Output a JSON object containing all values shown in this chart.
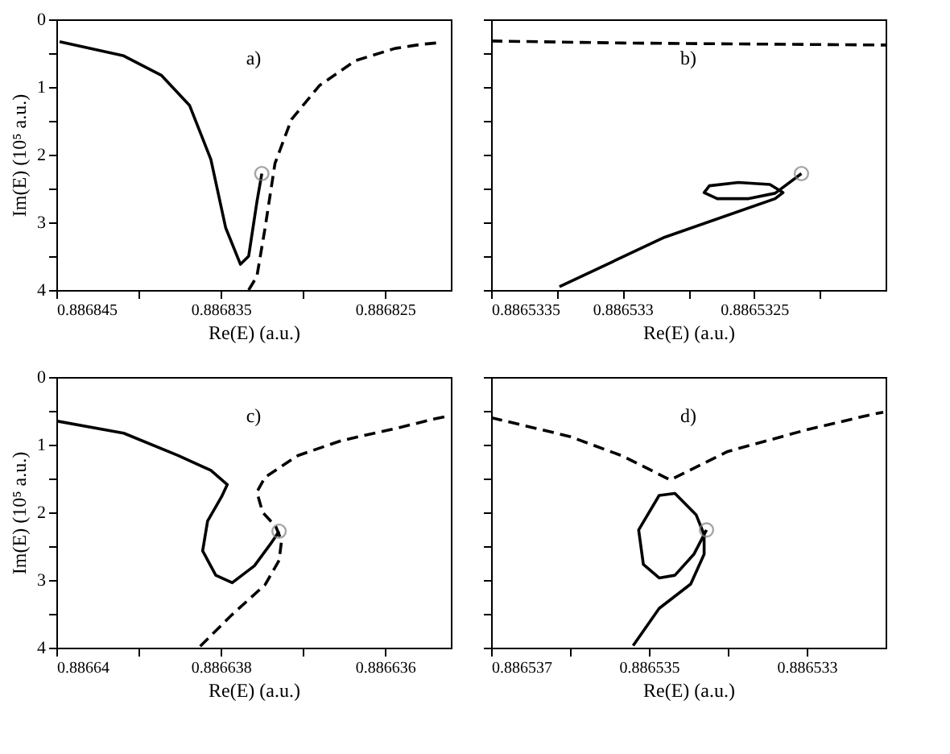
{
  "chart_data": [
    {
      "type": "line",
      "annotations": [
        "a)"
      ],
      "xlabel": "Re(E) (a.u.)",
      "ylabel": "Im(E) (10⁵ a.u.)",
      "xlim": [
        0.886845,
        0.886821
      ],
      "ylim": [
        4,
        0
      ],
      "xticks": [
        0.886845,
        {
          "value": 0.88684,
          "label": null
        },
        0.886835,
        {
          "value": 0.88683,
          "label": null
        },
        0.886825
      ],
      "yticks": [
        0,
        {
          "value": 0.5,
          "label": null
        },
        1,
        {
          "value": 1.5,
          "label": null
        },
        2,
        {
          "value": 2.5,
          "label": null
        },
        3,
        {
          "value": 3.5,
          "label": null
        },
        4
      ],
      "series": [
        {
          "color": "#000000",
          "line_style": "solid",
          "x": [
            0.8868448,
            0.8868409,
            0.8868386,
            0.8868369,
            0.8868356,
            0.8868347,
            0.8868338,
            0.8868333,
            0.8868328,
            0.8868325
          ],
          "values": [
            0.33,
            0.54,
            0.83,
            1.27,
            2.07,
            3.08,
            3.62,
            3.5,
            2.7,
            2.28
          ]
        },
        {
          "color": "#000000",
          "line_style": "dashed",
          "x": [
            0.8868333,
            0.8868328,
            0.8868323,
            0.8868317,
            0.8868307,
            0.886829,
            0.8868268,
            0.8868244,
            0.8868228,
            0.8868219
          ],
          "values": [
            4.0,
            3.8,
            3.08,
            2.13,
            1.48,
            0.98,
            0.61,
            0.43,
            0.37,
            0.35
          ]
        },
        {
          "type": "scatter",
          "marker": "circle",
          "color": "#808080",
          "x": [
            0.8868325
          ],
          "values": [
            2.28
          ]
        }
      ]
    },
    {
      "type": "line",
      "annotations": [
        "b)"
      ],
      "xlabel": "Re(E) (a.u.)",
      "tick_labels": "x",
      "xlim": [
        0.8865335,
        0.886532
      ],
      "ylim": [
        4,
        0
      ],
      "xticks": [
        0.8865335,
        {
          "value": 0.88653325,
          "label": null
        },
        0.886533,
        {
          "value": 0.88653275,
          "label": null
        },
        0.8865325,
        {
          "value": 0.88653225,
          "label": null
        }
      ],
      "yticks": [
        0,
        {
          "value": 0.5,
          "label": null
        },
        1,
        {
          "value": 1.5,
          "label": null
        },
        2,
        {
          "value": 2.5,
          "label": null
        },
        3,
        {
          "value": 3.5,
          "label": null
        },
        4
      ],
      "series": [
        {
          "color": "#000000",
          "line_style": "solid",
          "x": [
            0.88653324,
            0.88653284,
            0.88653242,
            0.88653239,
            0.88653244,
            0.88653256,
            0.88653267,
            0.88653269,
            0.88653264,
            0.88653252,
            0.88653242,
            0.88653232
          ],
          "values": [
            3.95,
            3.22,
            2.65,
            2.56,
            2.44,
            2.41,
            2.46,
            2.56,
            2.65,
            2.65,
            2.57,
            2.28
          ]
        },
        {
          "color": "#000000",
          "line_style": "dashed",
          "x": [
            0.8865335,
            0.886533,
            0.886532
          ],
          "values": [
            0.32,
            0.35,
            0.38
          ]
        },
        {
          "type": "scatter",
          "marker": "circle",
          "color": "#808080",
          "x": [
            0.88653232
          ],
          "values": [
            2.28
          ]
        }
      ]
    },
    {
      "type": "line",
      "annotations": [
        "c)"
      ],
      "xlabel": "Re(E) (a.u.)",
      "ylabel": "Im(E) (10⁵ a.u.)",
      "xlim": [
        0.88664,
        0.8866352
      ],
      "ylim": [
        4,
        0
      ],
      "xticks": [
        0.88664,
        {
          "value": 0.886639,
          "label": null
        },
        0.886638,
        {
          "value": 0.886637,
          "label": null
        },
        0.886636
      ],
      "yticks": [
        0,
        {
          "value": 0.5,
          "label": null
        },
        1,
        {
          "value": 1.5,
          "label": null
        },
        2,
        {
          "value": 2.5,
          "label": null
        },
        3,
        {
          "value": 3.5,
          "label": null
        },
        4
      ],
      "series": [
        {
          "color": "#000000",
          "line_style": "solid",
          "x": [
            0.88664,
            0.88663918,
            0.88663852,
            0.88663812,
            0.88663792,
            0.88663799,
            0.88663816,
            0.88663822,
            0.88663806,
            0.88663786,
            0.88663759,
            0.88663739,
            0.88663729
          ],
          "values": [
            0.65,
            0.83,
            1.16,
            1.38,
            1.59,
            1.77,
            2.13,
            2.57,
            2.93,
            3.04,
            2.79,
            2.46,
            2.28
          ]
        },
        {
          "color": "#000000",
          "line_style": "dashed",
          "x": [
            0.88663825,
            0.88663786,
            0.88663746,
            0.88663729,
            0.88663726,
            0.88663733,
            0.88663749,
            0.88663756,
            0.88663746,
            0.88663706,
            0.88663653,
            0.88663587,
            0.8866354,
            0.88663524
          ],
          "values": [
            3.98,
            3.51,
            3.07,
            2.71,
            2.42,
            2.21,
            2.0,
            1.7,
            1.48,
            1.16,
            0.94,
            0.76,
            0.62,
            0.58
          ]
        },
        {
          "type": "scatter",
          "marker": "circle",
          "color": "#808080",
          "x": [
            0.88663729
          ],
          "values": [
            2.28
          ]
        }
      ]
    },
    {
      "type": "line",
      "annotations": [
        "d)"
      ],
      "xlabel": "Re(E) (a.u.)",
      "tick_labels": "x",
      "xlim": [
        0.886537,
        0.886532
      ],
      "ylim": [
        4,
        0
      ],
      "xticks": [
        0.886537,
        {
          "value": 0.886536,
          "label": null
        },
        0.886535,
        {
          "value": 0.886534,
          "label": null
        },
        0.886533
      ],
      "yticks": [
        0,
        {
          "value": 0.5,
          "label": null
        },
        1,
        {
          "value": 1.5,
          "label": null
        },
        2,
        {
          "value": 2.5,
          "label": null
        },
        3,
        {
          "value": 3.5,
          "label": null
        },
        4
      ],
      "series": [
        {
          "color": "#000000",
          "line_style": "solid",
          "x": [
            0.8865352,
            0.88653487,
            0.88653447,
            0.8865343,
            0.8865343,
            0.8865344,
            0.88653467,
            0.88653487,
            0.88653513,
            0.88653507,
            0.88653487,
            0.88653467,
            0.88653443,
            0.88653427
          ],
          "values": [
            3.97,
            3.42,
            3.06,
            2.62,
            2.33,
            2.04,
            1.72,
            1.75,
            2.26,
            2.77,
            2.97,
            2.93,
            2.62,
            2.26
          ]
        },
        {
          "color": "#000000",
          "line_style": "dashed",
          "x": [
            0.886537,
            0.886536,
            0.88653533,
            0.88653473,
            0.886534,
            0.886533,
            0.8865322,
            0.88653203
          ],
          "values": [
            0.6,
            0.88,
            1.17,
            1.52,
            1.1,
            0.78,
            0.56,
            0.52
          ]
        },
        {
          "type": "scatter",
          "marker": "circle",
          "color": "#808080",
          "x": [
            0.88653427
          ],
          "values": [
            2.26
          ]
        }
      ]
    }
  ]
}
